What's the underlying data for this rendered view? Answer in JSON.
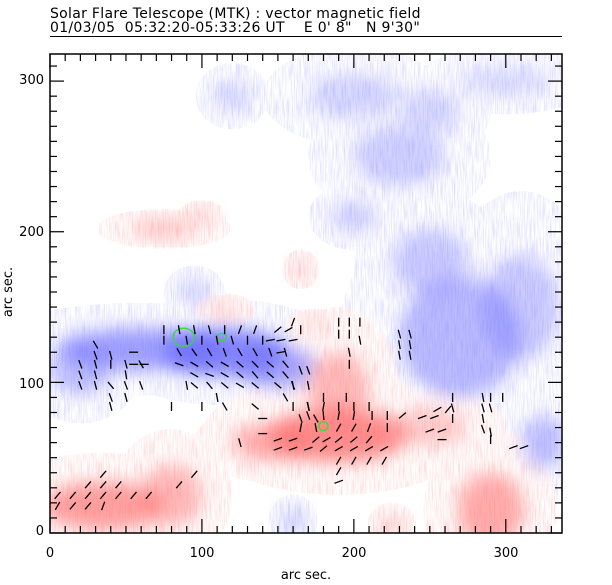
{
  "header": {
    "title": "Solar Flare Telescope (MTK) : vector magnetic field",
    "subtitle": "01/03/05  05:32:20-05:33:26 UT    E 0' 8\"   N 9'30\""
  },
  "colors": {
    "positive_polarity": "#ff6b6b",
    "negative_polarity": "#6b6bff",
    "transverse_vector": "#000000",
    "contour": "#33dd33",
    "frame": "#000000"
  },
  "chart_data": {
    "type": "heatmap",
    "title": "Solar Flare Telescope (MTK) : vector magnetic field",
    "xlabel": "arc sec.",
    "ylabel": "arc sec.",
    "xlim": [
      0,
      337
    ],
    "ylim": [
      0,
      318
    ],
    "xticks": [
      0,
      100,
      200,
      300
    ],
    "yticks": [
      0,
      100,
      200,
      300
    ],
    "x_tick_labels": [
      "0",
      "100",
      "200",
      "300"
    ],
    "y_tick_labels": [
      "0",
      "100",
      "200",
      "300"
    ],
    "minor_tick_step": 10,
    "grid": false,
    "legend": "none",
    "polarity_regions": [
      {
        "polarity": "negative",
        "cx": 60,
        "cy": 122,
        "rx": 55,
        "ry": 14,
        "strength": 0.75
      },
      {
        "polarity": "negative",
        "cx": 115,
        "cy": 120,
        "rx": 40,
        "ry": 16,
        "strength": 0.95
      },
      {
        "polarity": "negative",
        "cx": 150,
        "cy": 110,
        "rx": 25,
        "ry": 14,
        "strength": 0.7
      },
      {
        "polarity": "negative",
        "cx": 20,
        "cy": 108,
        "rx": 20,
        "ry": 16,
        "strength": 0.5
      },
      {
        "polarity": "negative",
        "cx": 270,
        "cy": 130,
        "rx": 40,
        "ry": 40,
        "strength": 0.55
      },
      {
        "polarity": "negative",
        "cx": 250,
        "cy": 180,
        "rx": 25,
        "ry": 22,
        "strength": 0.4
      },
      {
        "polarity": "negative",
        "cx": 310,
        "cy": 150,
        "rx": 25,
        "ry": 35,
        "strength": 0.4
      },
      {
        "polarity": "negative",
        "cx": 325,
        "cy": 60,
        "rx": 14,
        "ry": 18,
        "strength": 0.5
      },
      {
        "polarity": "negative",
        "cx": 200,
        "cy": 210,
        "rx": 15,
        "ry": 10,
        "strength": 0.35
      },
      {
        "polarity": "negative",
        "cx": 230,
        "cy": 250,
        "rx": 30,
        "ry": 20,
        "strength": 0.35
      },
      {
        "polarity": "negative",
        "cx": 200,
        "cy": 290,
        "rx": 30,
        "ry": 15,
        "strength": 0.3
      },
      {
        "polarity": "negative",
        "cx": 250,
        "cy": 280,
        "rx": 20,
        "ry": 14,
        "strength": 0.3
      },
      {
        "polarity": "negative",
        "cx": 120,
        "cy": 290,
        "rx": 12,
        "ry": 10,
        "strength": 0.3
      },
      {
        "polarity": "negative",
        "cx": 95,
        "cy": 160,
        "rx": 10,
        "ry": 8,
        "strength": 0.35
      },
      {
        "polarity": "negative",
        "cx": 160,
        "cy": 8,
        "rx": 8,
        "ry": 8,
        "strength": 0.4
      },
      {
        "polarity": "negative",
        "cx": 300,
        "cy": 300,
        "rx": 30,
        "ry": 10,
        "strength": 0.25
      },
      {
        "polarity": "positive",
        "cx": 190,
        "cy": 65,
        "rx": 45,
        "ry": 18,
        "strength": 0.9
      },
      {
        "polarity": "positive",
        "cx": 190,
        "cy": 95,
        "rx": 20,
        "ry": 25,
        "strength": 0.55
      },
      {
        "polarity": "positive",
        "cx": 145,
        "cy": 60,
        "rx": 25,
        "ry": 12,
        "strength": 0.65
      },
      {
        "polarity": "positive",
        "cx": 35,
        "cy": 18,
        "rx": 40,
        "ry": 16,
        "strength": 0.75
      },
      {
        "polarity": "positive",
        "cx": 80,
        "cy": 25,
        "rx": 20,
        "ry": 20,
        "strength": 0.55
      },
      {
        "polarity": "positive",
        "cx": 290,
        "cy": 15,
        "rx": 22,
        "ry": 25,
        "strength": 0.65
      },
      {
        "polarity": "positive",
        "cx": 250,
        "cy": 70,
        "rx": 25,
        "ry": 12,
        "strength": 0.4
      },
      {
        "polarity": "positive",
        "cx": 75,
        "cy": 202,
        "rx": 22,
        "ry": 6,
        "strength": 0.45
      },
      {
        "polarity": "positive",
        "cx": 100,
        "cy": 210,
        "rx": 8,
        "ry": 5,
        "strength": 0.4
      },
      {
        "polarity": "positive",
        "cx": 165,
        "cy": 175,
        "rx": 6,
        "ry": 6,
        "strength": 0.4
      },
      {
        "polarity": "positive",
        "cx": 225,
        "cy": 5,
        "rx": 8,
        "ry": 7,
        "strength": 0.4
      },
      {
        "polarity": "positive",
        "cx": 115,
        "cy": 148,
        "rx": 10,
        "ry": 5,
        "strength": 0.35
      },
      {
        "polarity": "positive",
        "cx": 175,
        "cy": 138,
        "rx": 10,
        "ry": 5,
        "strength": 0.3
      }
    ],
    "transverse_vectors": [
      {
        "x": 30,
        "y": 125,
        "angle": -60
      },
      {
        "x": 30,
        "y": 118,
        "angle": -70
      },
      {
        "x": 40,
        "y": 118,
        "angle": -75
      },
      {
        "x": 20,
        "y": 112,
        "angle": -70
      },
      {
        "x": 30,
        "y": 112,
        "angle": -75
      },
      {
        "x": 40,
        "y": 112,
        "angle": -90
      },
      {
        "x": 50,
        "y": 112,
        "angle": -75
      },
      {
        "x": 60,
        "y": 112,
        "angle": -60
      },
      {
        "x": 20,
        "y": 105,
        "angle": -70
      },
      {
        "x": 30,
        "y": 105,
        "angle": -75
      },
      {
        "x": 50,
        "y": 105,
        "angle": -80
      },
      {
        "x": 20,
        "y": 98,
        "angle": -70
      },
      {
        "x": 30,
        "y": 98,
        "angle": -75
      },
      {
        "x": 40,
        "y": 98,
        "angle": -50
      },
      {
        "x": 50,
        "y": 98,
        "angle": -70
      },
      {
        "x": 60,
        "y": 98,
        "angle": -70
      },
      {
        "x": 40,
        "y": 90,
        "angle": -70
      },
      {
        "x": 50,
        "y": 90,
        "angle": -75
      },
      {
        "x": 40,
        "y": 84,
        "angle": -75
      },
      {
        "x": 90,
        "y": 98,
        "angle": -80
      },
      {
        "x": 80,
        "y": 84,
        "angle": -90
      },
      {
        "x": 55,
        "y": 120,
        "angle": 0
      },
      {
        "x": 55,
        "y": 112,
        "angle": 0
      },
      {
        "x": 62,
        "y": 112,
        "angle": 0
      },
      {
        "x": 75,
        "y": 135,
        "angle": -90
      },
      {
        "x": 85,
        "y": 135,
        "angle": -80
      },
      {
        "x": 95,
        "y": 135,
        "angle": -80
      },
      {
        "x": 105,
        "y": 135,
        "angle": -75
      },
      {
        "x": 115,
        "y": 135,
        "angle": -90
      },
      {
        "x": 125,
        "y": 135,
        "angle": 70
      },
      {
        "x": 135,
        "y": 135,
        "angle": 70
      },
      {
        "x": 75,
        "y": 128,
        "angle": -90
      },
      {
        "x": 90,
        "y": 128,
        "angle": -80
      },
      {
        "x": 100,
        "y": 128,
        "angle": -90
      },
      {
        "x": 110,
        "y": 128,
        "angle": -80
      },
      {
        "x": 120,
        "y": 128,
        "angle": -75
      },
      {
        "x": 130,
        "y": 128,
        "angle": -90
      },
      {
        "x": 140,
        "y": 128,
        "angle": -90
      },
      {
        "x": 85,
        "y": 120,
        "angle": -60
      },
      {
        "x": 95,
        "y": 120,
        "angle": -55
      },
      {
        "x": 105,
        "y": 120,
        "angle": -60
      },
      {
        "x": 115,
        "y": 120,
        "angle": -70
      },
      {
        "x": 125,
        "y": 120,
        "angle": -60
      },
      {
        "x": 135,
        "y": 120,
        "angle": -60
      },
      {
        "x": 145,
        "y": 120,
        "angle": -70
      },
      {
        "x": 155,
        "y": 120,
        "angle": -75
      },
      {
        "x": 85,
        "y": 112,
        "angle": -20
      },
      {
        "x": 95,
        "y": 112,
        "angle": -30
      },
      {
        "x": 105,
        "y": 112,
        "angle": -40
      },
      {
        "x": 115,
        "y": 112,
        "angle": -30
      },
      {
        "x": 125,
        "y": 112,
        "angle": -40
      },
      {
        "x": 135,
        "y": 112,
        "angle": -45
      },
      {
        "x": 145,
        "y": 112,
        "angle": -40
      },
      {
        "x": 155,
        "y": 112,
        "angle": -50
      },
      {
        "x": 95,
        "y": 105,
        "angle": -30
      },
      {
        "x": 105,
        "y": 105,
        "angle": -20
      },
      {
        "x": 115,
        "y": 105,
        "angle": -30
      },
      {
        "x": 125,
        "y": 105,
        "angle": -40
      },
      {
        "x": 135,
        "y": 105,
        "angle": -50
      },
      {
        "x": 145,
        "y": 105,
        "angle": -40
      },
      {
        "x": 155,
        "y": 105,
        "angle": -50
      },
      {
        "x": 95,
        "y": 98,
        "angle": -40
      },
      {
        "x": 105,
        "y": 98,
        "angle": -50
      },
      {
        "x": 115,
        "y": 98,
        "angle": -40
      },
      {
        "x": 125,
        "y": 98,
        "angle": -30
      },
      {
        "x": 135,
        "y": 98,
        "angle": -40
      },
      {
        "x": 150,
        "y": 98,
        "angle": -40
      },
      {
        "x": 160,
        "y": 98,
        "angle": -70
      },
      {
        "x": 110,
        "y": 90,
        "angle": -80
      },
      {
        "x": 115,
        "y": 84,
        "angle": -60
      },
      {
        "x": 135,
        "y": 84,
        "angle": -40
      },
      {
        "x": 100,
        "y": 84,
        "angle": -90
      },
      {
        "x": 160,
        "y": 140,
        "angle": 70
      },
      {
        "x": 150,
        "y": 135,
        "angle": 40
      },
      {
        "x": 157,
        "y": 135,
        "angle": 30
      },
      {
        "x": 165,
        "y": 135,
        "angle": -90
      },
      {
        "x": 145,
        "y": 128,
        "angle": 10
      },
      {
        "x": 152,
        "y": 128,
        "angle": 10
      },
      {
        "x": 160,
        "y": 128,
        "angle": 10
      },
      {
        "x": 152,
        "y": 120,
        "angle": 10
      },
      {
        "x": 165,
        "y": 108,
        "angle": -70
      },
      {
        "x": 170,
        "y": 108,
        "angle": -70
      },
      {
        "x": 160,
        "y": 98,
        "angle": -80
      },
      {
        "x": 170,
        "y": 98,
        "angle": -80
      },
      {
        "x": 155,
        "y": 90,
        "angle": -60
      },
      {
        "x": 160,
        "y": 84,
        "angle": -90
      },
      {
        "x": 170,
        "y": 84,
        "angle": -75
      },
      {
        "x": 165,
        "y": 76,
        "angle": -70
      },
      {
        "x": 175,
        "y": 76,
        "angle": -60
      },
      {
        "x": 190,
        "y": 140,
        "angle": 90
      },
      {
        "x": 197,
        "y": 140,
        "angle": 90
      },
      {
        "x": 204,
        "y": 140,
        "angle": 90
      },
      {
        "x": 190,
        "y": 132,
        "angle": 90
      },
      {
        "x": 197,
        "y": 132,
        "angle": 90
      },
      {
        "x": 204,
        "y": 128,
        "angle": -80
      },
      {
        "x": 197,
        "y": 120,
        "angle": -80
      },
      {
        "x": 197,
        "y": 112,
        "angle": -90
      },
      {
        "x": 230,
        "y": 132,
        "angle": -75
      },
      {
        "x": 237,
        "y": 132,
        "angle": -75
      },
      {
        "x": 230,
        "y": 125,
        "angle": -80
      },
      {
        "x": 237,
        "y": 125,
        "angle": -80
      },
      {
        "x": 230,
        "y": 118,
        "angle": -80
      },
      {
        "x": 237,
        "y": 118,
        "angle": -80
      },
      {
        "x": 180,
        "y": 90,
        "angle": 90
      },
      {
        "x": 195,
        "y": 90,
        "angle": 90
      },
      {
        "x": 170,
        "y": 84,
        "angle": -80
      },
      {
        "x": 180,
        "y": 84,
        "angle": 80
      },
      {
        "x": 190,
        "y": 84,
        "angle": 90
      },
      {
        "x": 200,
        "y": 84,
        "angle": 90
      },
      {
        "x": 210,
        "y": 84,
        "angle": 90
      },
      {
        "x": 170,
        "y": 78,
        "angle": 110
      },
      {
        "x": 180,
        "y": 78,
        "angle": 95
      },
      {
        "x": 190,
        "y": 78,
        "angle": 80
      },
      {
        "x": 200,
        "y": 78,
        "angle": 80
      },
      {
        "x": 212,
        "y": 78,
        "angle": 90
      },
      {
        "x": 222,
        "y": 78,
        "angle": 90
      },
      {
        "x": 232,
        "y": 78,
        "angle": 40
      },
      {
        "x": 140,
        "y": 76,
        "angle": 0
      },
      {
        "x": 140,
        "y": 66,
        "angle": 0
      },
      {
        "x": 165,
        "y": 70,
        "angle": 80
      },
      {
        "x": 175,
        "y": 70,
        "angle": 100
      },
      {
        "x": 190,
        "y": 70,
        "angle": 60
      },
      {
        "x": 200,
        "y": 70,
        "angle": 60
      },
      {
        "x": 210,
        "y": 70,
        "angle": 70
      },
      {
        "x": 222,
        "y": 70,
        "angle": 90
      },
      {
        "x": 125,
        "y": 60,
        "angle": -75
      },
      {
        "x": 150,
        "y": 62,
        "angle": 20
      },
      {
        "x": 160,
        "y": 62,
        "angle": 20
      },
      {
        "x": 175,
        "y": 62,
        "angle": 40
      },
      {
        "x": 182,
        "y": 62,
        "angle": 30
      },
      {
        "x": 190,
        "y": 62,
        "angle": 40
      },
      {
        "x": 200,
        "y": 62,
        "angle": 40
      },
      {
        "x": 210,
        "y": 62,
        "angle": 50
      },
      {
        "x": 150,
        "y": 56,
        "angle": 20
      },
      {
        "x": 160,
        "y": 56,
        "angle": 20
      },
      {
        "x": 170,
        "y": 56,
        "angle": 20
      },
      {
        "x": 180,
        "y": 56,
        "angle": 40
      },
      {
        "x": 190,
        "y": 56,
        "angle": 30
      },
      {
        "x": 200,
        "y": 56,
        "angle": 30
      },
      {
        "x": 210,
        "y": 56,
        "angle": 30
      },
      {
        "x": 220,
        "y": 56,
        "angle": 30
      },
      {
        "x": 190,
        "y": 48,
        "angle": 60
      },
      {
        "x": 200,
        "y": 48,
        "angle": 60
      },
      {
        "x": 210,
        "y": 48,
        "angle": 60
      },
      {
        "x": 220,
        "y": 48,
        "angle": 60
      },
      {
        "x": 190,
        "y": 41,
        "angle": 60
      },
      {
        "x": 190,
        "y": 34,
        "angle": 20
      },
      {
        "x": 255,
        "y": 82,
        "angle": 30
      },
      {
        "x": 262,
        "y": 82,
        "angle": 50
      },
      {
        "x": 245,
        "y": 77,
        "angle": 20
      },
      {
        "x": 253,
        "y": 77,
        "angle": 20
      },
      {
        "x": 250,
        "y": 68,
        "angle": 20
      },
      {
        "x": 258,
        "y": 68,
        "angle": 20
      },
      {
        "x": 258,
        "y": 62,
        "angle": 0
      },
      {
        "x": 265,
        "y": 90,
        "angle": 90
      },
      {
        "x": 285,
        "y": 90,
        "angle": -80
      },
      {
        "x": 290,
        "y": 90,
        "angle": -90
      },
      {
        "x": 298,
        "y": 90,
        "angle": 90
      },
      {
        "x": 265,
        "y": 83,
        "angle": -75
      },
      {
        "x": 285,
        "y": 83,
        "angle": -75
      },
      {
        "x": 290,
        "y": 83,
        "angle": -75
      },
      {
        "x": 265,
        "y": 76,
        "angle": -90
      },
      {
        "x": 285,
        "y": 76,
        "angle": -80
      },
      {
        "x": 285,
        "y": 69,
        "angle": -70
      },
      {
        "x": 290,
        "y": 67,
        "angle": -80
      },
      {
        "x": 290,
        "y": 62,
        "angle": -90
      },
      {
        "x": 305,
        "y": 57,
        "angle": 20
      },
      {
        "x": 312,
        "y": 57,
        "angle": 20
      },
      {
        "x": 5,
        "y": 25,
        "angle": 50
      },
      {
        "x": 15,
        "y": 25,
        "angle": 50
      },
      {
        "x": 25,
        "y": 25,
        "angle": 50
      },
      {
        "x": 35,
        "y": 25,
        "angle": 50
      },
      {
        "x": 45,
        "y": 25,
        "angle": 50
      },
      {
        "x": 55,
        "y": 25,
        "angle": 50
      },
      {
        "x": 65,
        "y": 25,
        "angle": 50
      },
      {
        "x": 5,
        "y": 18,
        "angle": 60
      },
      {
        "x": 15,
        "y": 18,
        "angle": 50
      },
      {
        "x": 25,
        "y": 18,
        "angle": 50
      },
      {
        "x": 35,
        "y": 18,
        "angle": 70
      },
      {
        "x": 25,
        "y": 32,
        "angle": 50
      },
      {
        "x": 35,
        "y": 32,
        "angle": 50
      },
      {
        "x": 45,
        "y": 32,
        "angle": 50
      },
      {
        "x": 35,
        "y": 39,
        "angle": 50
      },
      {
        "x": 85,
        "y": 32,
        "angle": 50
      },
      {
        "x": 95,
        "y": 39,
        "angle": 50
      }
    ],
    "contours": [
      {
        "cx": 88,
        "cy": 130,
        "rx": 7,
        "ry": 6
      },
      {
        "cx": 113,
        "cy": 130,
        "rx": 3,
        "ry": 2.5
      },
      {
        "cx": 180,
        "cy": 71,
        "rx": 3,
        "ry": 3
      }
    ]
  }
}
